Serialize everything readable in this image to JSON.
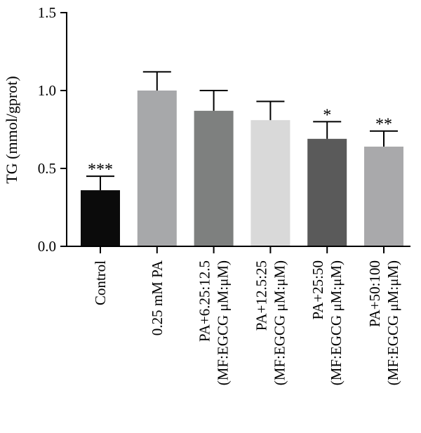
{
  "chart_data": {
    "type": "bar",
    "ylabel": "TG (mmol/gprot)",
    "xlabel": "",
    "ylim": [
      0,
      1.5
    ],
    "yticks": [
      "0.0",
      "0.5",
      "1.0",
      "1.5"
    ],
    "categories": [
      [
        "Control"
      ],
      [
        "0.25 mM PA"
      ],
      [
        "PA+6.25:12.5",
        "(MF:EGCG μM:μM)"
      ],
      [
        "PA+12.5:25",
        "(MF:EGCG μM:μM)"
      ],
      [
        "PA+25:50",
        "(MF:EGCG μM:μM)"
      ],
      [
        "PA+50:100",
        "(MF:EGCG μM:μM)"
      ]
    ],
    "values": [
      0.36,
      1.0,
      0.87,
      0.81,
      0.69,
      0.64
    ],
    "errors": [
      0.09,
      0.12,
      0.13,
      0.12,
      0.11,
      0.1
    ],
    "significance": [
      "***",
      "",
      "",
      "",
      "*",
      "**"
    ],
    "colors": [
      "#0b0b0b",
      "#a7a8aa",
      "#7e807f",
      "#d9d9d9",
      "#5a5a5a",
      "#a9a9ab"
    ],
    "grid": false
  }
}
